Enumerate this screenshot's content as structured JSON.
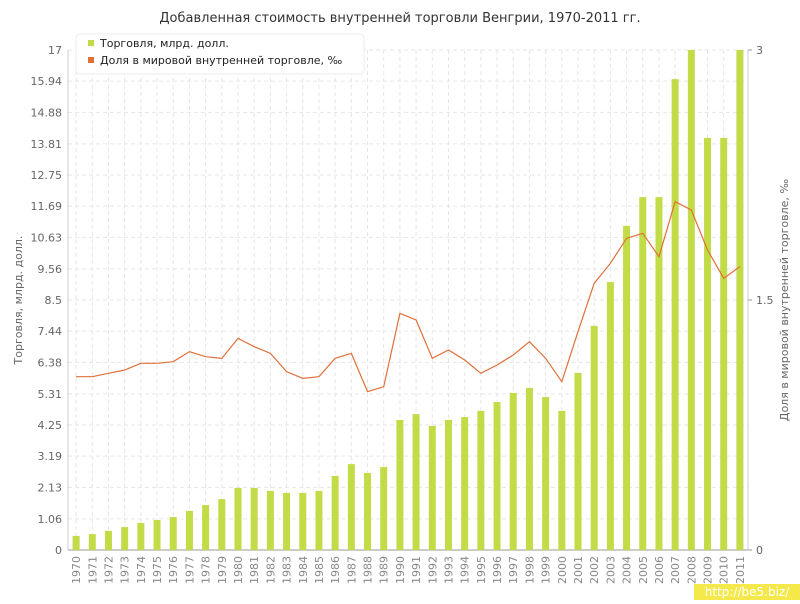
{
  "chart_data": {
    "type": "bar-line",
    "title": "Добавленная стоимость внутренней торговли Венгрии, 1970-2011 гг.",
    "y_label": "Торговля, млрд. долл.",
    "y2_label": "Доля в мировой внутренней торговле, ‰",
    "watermark": "http://be5.biz/",
    "categories": [
      "1970",
      "1971",
      "1972",
      "1973",
      "1974",
      "1975",
      "1976",
      "1977",
      "1978",
      "1979",
      "1980",
      "1981",
      "1982",
      "1983",
      "1984",
      "1985",
      "1986",
      "1987",
      "1988",
      "1989",
      "1990",
      "1991",
      "1992",
      "1993",
      "1994",
      "1995",
      "1996",
      "1997",
      "1998",
      "1999",
      "2000",
      "2001",
      "2002",
      "2003",
      "2004",
      "2005",
      "2006",
      "2007",
      "2008",
      "2009",
      "2010",
      "2011"
    ],
    "series": [
      {
        "name": "Торговля, млрд. долл.",
        "color": "#c2dc48",
        "type": "bar",
        "values": [
          0.48,
          0.54,
          0.65,
          0.78,
          0.92,
          1.02,
          1.12,
          1.33,
          1.53,
          1.73,
          2.11,
          2.11,
          2.01,
          1.94,
          1.94,
          2.01,
          2.52,
          2.92,
          2.62,
          2.82,
          4.42,
          4.62,
          4.22,
          4.42,
          4.52,
          4.73,
          5.03,
          5.34,
          5.51,
          5.2,
          4.73,
          6.02,
          7.62,
          9.11,
          11.02,
          12.0,
          12.0,
          16.01,
          17,
          14.01,
          14.01,
          17
        ]
      },
      {
        "name": "Доля в мировой внутренней торговле, ‰",
        "color": "#e0703a",
        "type": "line",
        "axis": "y2",
        "values": [
          1.04,
          1.04,
          1.06,
          1.08,
          1.12,
          1.12,
          1.13,
          1.19,
          1.16,
          1.15,
          1.27,
          1.22,
          1.18,
          1.07,
          1.03,
          1.04,
          1.15,
          1.18,
          0.95,
          0.98,
          1.42,
          1.38,
          1.15,
          1.2,
          1.14,
          1.06,
          1.11,
          1.17,
          1.25,
          1.15,
          1.01,
          1.31,
          1.6,
          1.72,
          1.87,
          1.9,
          1.76,
          2.09,
          2.04,
          1.8,
          1.63,
          1.7
        ]
      }
    ],
    "ylim": [
      0,
      17
    ],
    "yticks": [
      0,
      1.06,
      2.13,
      3.19,
      4.25,
      5.31,
      6.38,
      7.44,
      8.5,
      9.56,
      10.63,
      11.69,
      12.75,
      13.81,
      14.88,
      15.94,
      17
    ],
    "y2lim": [
      0,
      3
    ],
    "y2ticks": [
      0,
      1.5,
      3
    ],
    "grid": true,
    "legend": "top-left"
  }
}
